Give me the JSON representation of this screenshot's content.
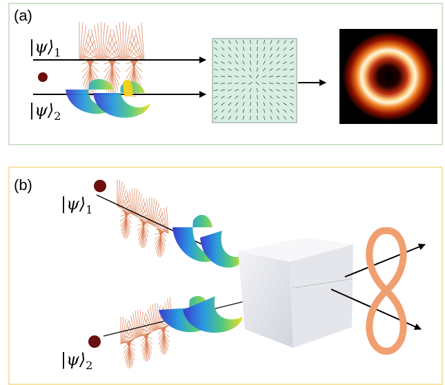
{
  "panels": [
    {
      "label": "(a)",
      "states": [
        {
          "ket": "|ψ⟩",
          "sub": "1"
        },
        {
          "ket": "|ψ⟩",
          "sub": "2"
        }
      ]
    },
    {
      "label": "(b)",
      "states": [
        {
          "ket": "|ψ⟩",
          "sub": "1"
        },
        {
          "ket": "|ψ⟩",
          "sub": "2"
        }
      ]
    }
  ]
}
